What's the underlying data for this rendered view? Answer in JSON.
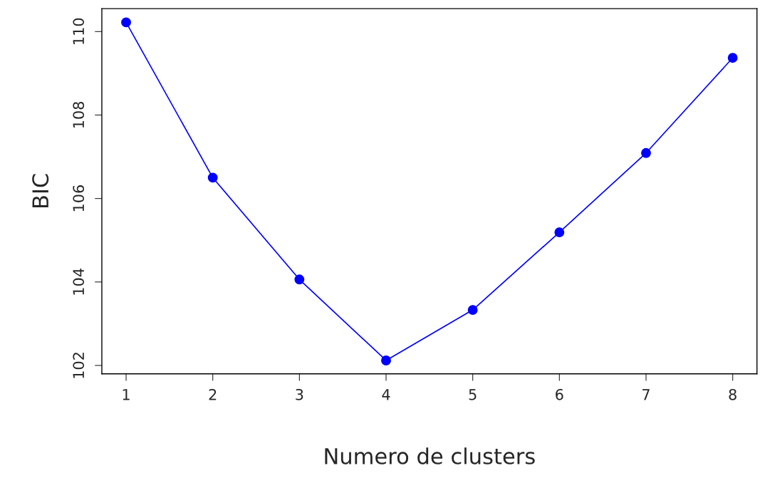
{
  "chart_data": {
    "type": "line",
    "xlabel": "Numero de clusters",
    "ylabel": "BIC",
    "x": [
      1,
      2,
      3,
      4,
      5,
      6,
      7,
      8
    ],
    "series": [
      {
        "color": "#0000ff",
        "values": [
          110.22,
          106.5,
          104.06,
          102.12,
          103.33,
          105.19,
          107.09,
          109.37
        ]
      }
    ],
    "xlim": [
      0.72,
      8.28
    ],
    "ylim": [
      101.8,
      110.55
    ],
    "xticks": [
      1,
      2,
      3,
      4,
      5,
      6,
      7,
      8
    ],
    "yticks": [
      102,
      104,
      106,
      108,
      110
    ],
    "marker": "circle",
    "line_style": "solid",
    "grid": false,
    "legend": false
  }
}
